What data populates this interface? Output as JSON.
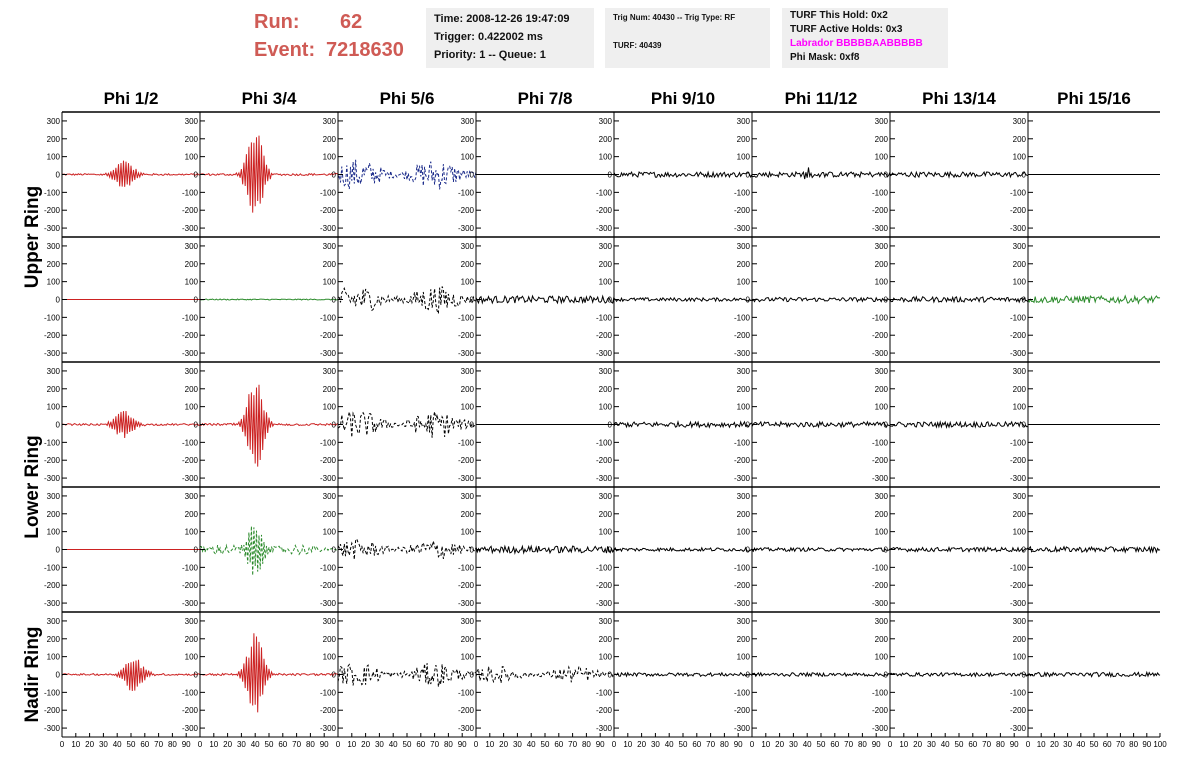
{
  "header": {
    "run_label": "Run:",
    "run_value": "62",
    "event_label": "Event:",
    "event_value": "7218630",
    "box1": [
      "Time: 2008-12-26 19:47:09",
      "Trigger: 0.422002 ms",
      "Priority: 1 -- Queue: 1"
    ],
    "box2": [
      "Trig Num: 40430 -- Trig Type: RF",
      "TURF: 40439"
    ],
    "box3": [
      "TURF This Hold: 0x2",
      "TURF Active Holds: 0x3",
      "Labrador BBBBBAABBBBB",
      "Phi Mask: 0xf8"
    ],
    "labrador_color": "#ff00ff",
    "run_color": "#cf5b55"
  },
  "chart_data": {
    "type": "line",
    "columns": [
      "Phi 1/2",
      "Phi 3/4",
      "Phi 5/6",
      "Phi 7/8",
      "Phi 9/10",
      "Phi 11/12",
      "Phi 13/14",
      "Phi 15/16"
    ],
    "rows": [
      "Upper Ring",
      "Lower Ring",
      "Nadir Ring"
    ],
    "y_ticks": [
      300,
      200,
      100,
      0,
      -100,
      -200,
      -300
    ],
    "ylim": [
      -350,
      350
    ],
    "xlim": [
      0,
      100
    ],
    "x_ticks": [
      0,
      10,
      20,
      30,
      40,
      50,
      60,
      70,
      80,
      90,
      100
    ],
    "colors": {
      "red": "#cc2222",
      "green": "#2a8a2a",
      "blue": "#1a2a8a",
      "black": "#000000"
    },
    "panels": [
      [
        {
          "color": "red",
          "style": "solid",
          "amp": 5,
          "burst": {
            "center": 45,
            "width": 6,
            "amp": 80
          }
        },
        {
          "color": "red",
          "style": "solid",
          "amp": 6,
          "burst": {
            "center": 40,
            "width": 5,
            "amp": 260
          }
        },
        {
          "color": "blue",
          "style": "dashed",
          "amp": 90,
          "burst": null
        },
        {
          "color": "black",
          "style": "solid",
          "amp": 0,
          "burst": null
        },
        {
          "color": "black",
          "style": "solid",
          "amp": 15,
          "burst": null
        },
        {
          "color": "black",
          "style": "solid",
          "amp": 15,
          "burst": {
            "center": 40,
            "width": 2,
            "amp": 40
          }
        },
        {
          "color": "black",
          "style": "solid",
          "amp": 15,
          "burst": null
        },
        {
          "color": "black",
          "style": "solid",
          "amp": 0,
          "burst": null
        }
      ],
      [
        {
          "color": "red",
          "style": "solid",
          "amp": 0,
          "burst": null
        },
        {
          "color": "green",
          "style": "solid",
          "amp": 3,
          "burst": null
        },
        {
          "color": "black",
          "style": "dashed",
          "amp": 80,
          "burst": null
        },
        {
          "color": "black",
          "style": "solid",
          "amp": 20,
          "burst": null
        },
        {
          "color": "black",
          "style": "solid",
          "amp": 10,
          "burst": null
        },
        {
          "color": "black",
          "style": "solid",
          "amp": 12,
          "burst": null
        },
        {
          "color": "black",
          "style": "solid",
          "amp": 15,
          "burst": null
        },
        {
          "color": "green",
          "style": "solid",
          "amp": 20,
          "burst": null
        }
      ],
      [
        {
          "color": "red",
          "style": "solid",
          "amp": 5,
          "burst": {
            "center": 45,
            "width": 6,
            "amp": 80
          }
        },
        {
          "color": "red",
          "style": "solid",
          "amp": 6,
          "burst": {
            "center": 40,
            "width": 5,
            "amp": 260
          }
        },
        {
          "color": "black",
          "style": "dashed",
          "amp": 80,
          "burst": null
        },
        {
          "color": "black",
          "style": "solid",
          "amp": 0,
          "burst": null
        },
        {
          "color": "black",
          "style": "solid",
          "amp": 15,
          "burst": null
        },
        {
          "color": "black",
          "style": "solid",
          "amp": 15,
          "burst": null
        },
        {
          "color": "black",
          "style": "solid",
          "amp": 15,
          "burst": null
        },
        {
          "color": "black",
          "style": "solid",
          "amp": 0,
          "burst": null
        }
      ],
      [
        {
          "color": "red",
          "style": "solid",
          "amp": 0,
          "burst": null
        },
        {
          "color": "green",
          "style": "dashed",
          "amp": 30,
          "burst": {
            "center": 40,
            "width": 5,
            "amp": 150
          }
        },
        {
          "color": "black",
          "style": "dashed",
          "amp": 60,
          "burst": null
        },
        {
          "color": "black",
          "style": "solid",
          "amp": 20,
          "burst": null
        },
        {
          "color": "black",
          "style": "solid",
          "amp": 10,
          "burst": null
        },
        {
          "color": "black",
          "style": "solid",
          "amp": 10,
          "burst": null
        },
        {
          "color": "black",
          "style": "solid",
          "amp": 12,
          "burst": null
        },
        {
          "color": "black",
          "style": "solid",
          "amp": 15,
          "burst": null
        }
      ],
      [
        {
          "color": "red",
          "style": "solid",
          "amp": 5,
          "burst": {
            "center": 52,
            "width": 6,
            "amp": 100
          }
        },
        {
          "color": "red",
          "style": "solid",
          "amp": 6,
          "burst": {
            "center": 40,
            "width": 5,
            "amp": 240
          }
        },
        {
          "color": "black",
          "style": "dashed",
          "amp": 70,
          "burst": null
        },
        {
          "color": "black",
          "style": "dashed",
          "amp": 50,
          "burst": null
        },
        {
          "color": "black",
          "style": "solid",
          "amp": 10,
          "burst": null
        },
        {
          "color": "black",
          "style": "solid",
          "amp": 10,
          "burst": null
        },
        {
          "color": "black",
          "style": "solid",
          "amp": 10,
          "burst": null
        },
        {
          "color": "black",
          "style": "solid",
          "amp": 12,
          "burst": null
        }
      ]
    ]
  }
}
